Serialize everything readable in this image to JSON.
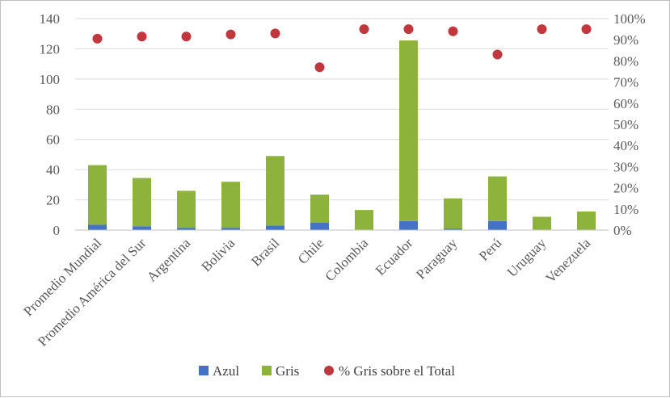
{
  "chart_data": {
    "type": "bar",
    "stacked": true,
    "categories": [
      "Promedio Mundial",
      "Promedio América del Sur",
      "Argentina",
      "Bolivia",
      "Brasil",
      "Chile",
      "Colombia",
      "Ecuador",
      "Paraguay",
      "Perú",
      "Uruguay",
      "Venezuela"
    ],
    "series": [
      {
        "name": "Azul",
        "kind": "bar",
        "axis": "left",
        "color": "#4472c4",
        "values": [
          3.5,
          2.5,
          1.5,
          1.5,
          3,
          5,
          0.3,
          6,
          1,
          6,
          0.3,
          0.3
        ]
      },
      {
        "name": "Gris",
        "kind": "bar",
        "axis": "left",
        "color": "#8db33c",
        "values": [
          39.5,
          32,
          24.5,
          30.5,
          46,
          18.5,
          13,
          119.5,
          20,
          29.5,
          8.5,
          12
        ]
      },
      {
        "name": "% Gris sobre el Total",
        "kind": "scatter",
        "axis": "right",
        "color": "#c0383d",
        "values": [
          90.5,
          91.5,
          91.5,
          92.5,
          93,
          77,
          95,
          95,
          94,
          83,
          95,
          95
        ]
      }
    ],
    "ylim": [
      0,
      140
    ],
    "y_ticks": [
      "0",
      "20",
      "40",
      "60",
      "80",
      "100",
      "120",
      "140"
    ],
    "y2lim": [
      0,
      100
    ],
    "y2_ticks": [
      "0%",
      "10%",
      "20%",
      "30%",
      "40%",
      "50%",
      "60%",
      "70%",
      "80%",
      "90%",
      "100%"
    ],
    "grid": true,
    "legend_position": "bottom",
    "title": "",
    "xlabel": "",
    "ylabel": ""
  }
}
